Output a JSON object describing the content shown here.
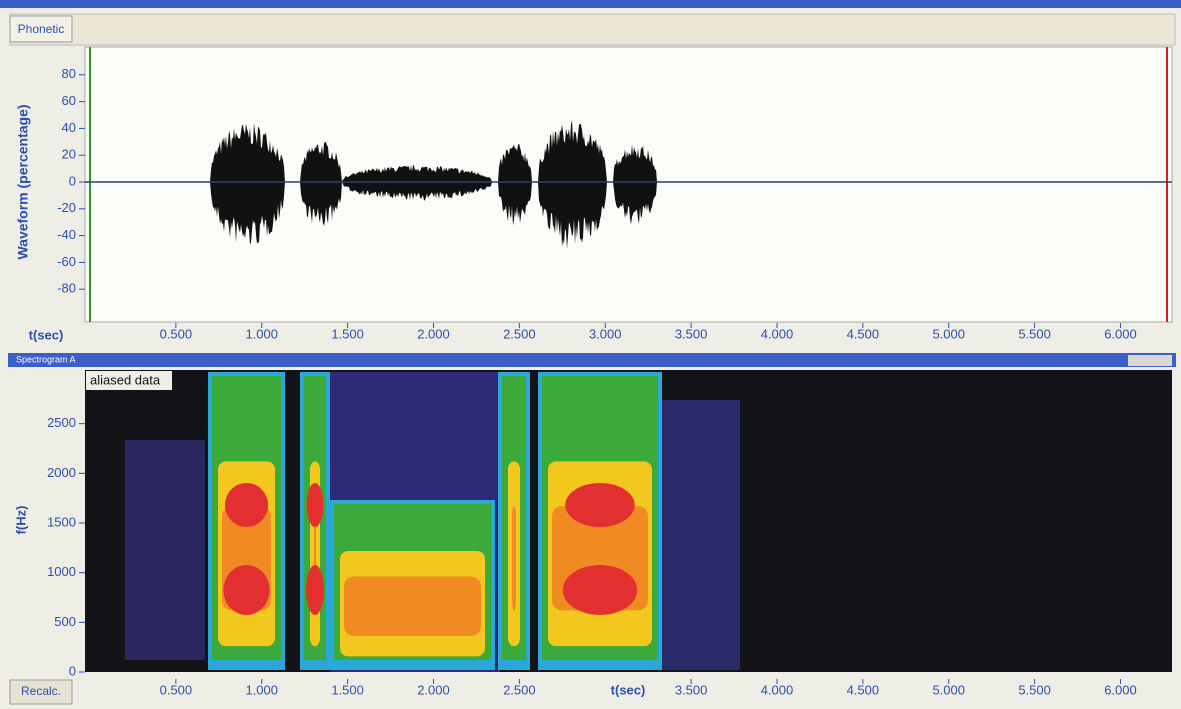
{
  "window": {
    "tab": "Phonetic"
  },
  "waveform": {
    "ylabel": "Waveform (percentage)",
    "xlabel": "t(sec)",
    "xlim": [
      0,
      6.3
    ],
    "ylim": [
      -100,
      100
    ],
    "yticks": [
      80,
      60,
      40,
      20,
      0,
      -20,
      -40,
      -60,
      -80
    ],
    "xticks": [
      {
        "value": 0.5,
        "label": "0.500"
      },
      {
        "value": 1.0,
        "label": "1.000"
      },
      {
        "value": 1.5,
        "label": "1.500"
      },
      {
        "value": 2.0,
        "label": "2.000"
      },
      {
        "value": 2.5,
        "label": "2.500"
      },
      {
        "value": 3.0,
        "label": "3.000"
      },
      {
        "value": 3.5,
        "label": "3.500"
      },
      {
        "value": 4.0,
        "label": "4.000"
      },
      {
        "value": 4.5,
        "label": "4.500"
      },
      {
        "value": 5.0,
        "label": "5.000"
      },
      {
        "value": 5.5,
        "label": "5.500"
      },
      {
        "value": 6.0,
        "label": "6.000"
      }
    ]
  },
  "spectrogram": {
    "title": "Spectrogram A",
    "note": "aliased data",
    "ylabel": "f(Hz)",
    "xlabel": "t(sec)",
    "button": "Recalc.",
    "xlim": [
      0,
      6.3
    ],
    "ylim": [
      0,
      3000
    ],
    "yticks": [
      0,
      500,
      1000,
      1500,
      2000,
      2500
    ],
    "xticks": [
      {
        "value": 0.5,
        "label": "0.500"
      },
      {
        "value": 1.0,
        "label": "1.000"
      },
      {
        "value": 1.5,
        "label": "1.500"
      },
      {
        "value": 2.0,
        "label": "2.000"
      },
      {
        "value": 2.5,
        "label": "2.500"
      },
      {
        "value": 3.5,
        "label": "3.500"
      },
      {
        "value": 4.0,
        "label": "4.000"
      },
      {
        "value": 4.5,
        "label": "4.500"
      },
      {
        "value": 5.0,
        "label": "5.000"
      },
      {
        "value": 5.5,
        "label": "5.500"
      },
      {
        "value": 6.0,
        "label": "6.000"
      }
    ]
  }
}
